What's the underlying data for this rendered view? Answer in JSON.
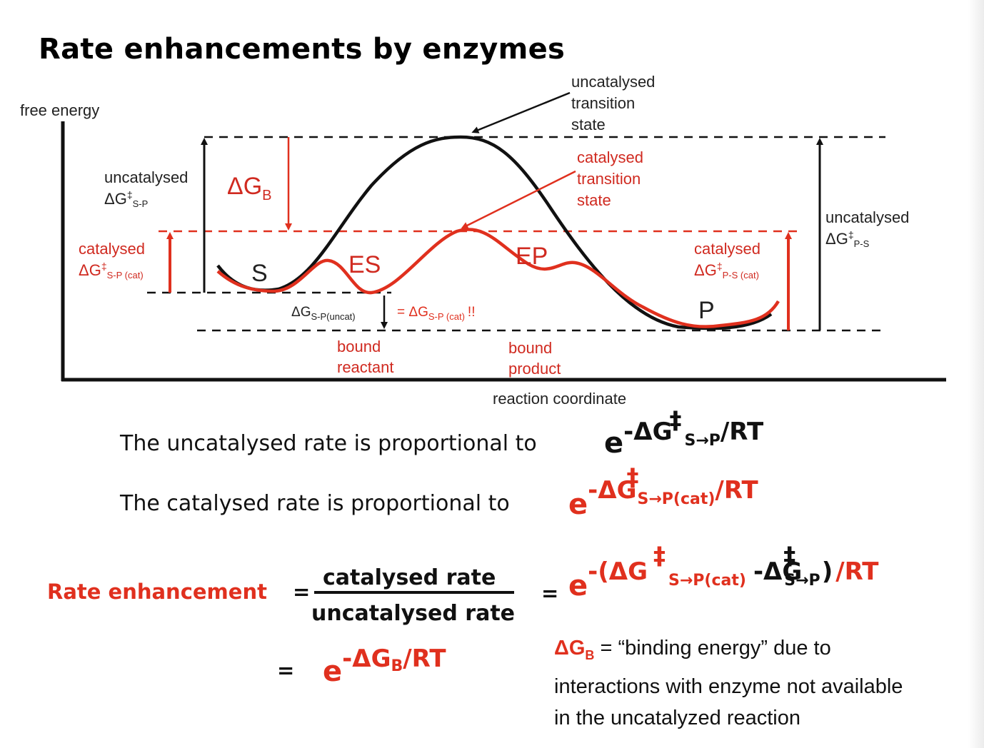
{
  "title": "Rate enhancements by enzymes",
  "diagram": {
    "y_axis_label": "free energy",
    "x_axis_label": "reaction coordinate",
    "uncat_ts_label": [
      "uncatalysed",
      "transition",
      "state"
    ],
    "cat_ts_label": [
      "catalysed",
      "transition",
      "state"
    ],
    "uncat_left": {
      "line1": "uncatalysed",
      "delta": "ΔG",
      "dagger": "‡",
      "sub": "S-P"
    },
    "cat_left": {
      "line1": "catalysed",
      "delta": "ΔG",
      "dagger": "‡",
      "sub": "S-P (cat)"
    },
    "uncat_right": {
      "line1": "uncatalysed",
      "delta": "ΔG",
      "dagger": "‡",
      "sub": "P-S"
    },
    "cat_right": {
      "line1": "catalysed",
      "delta": "ΔG",
      "dagger": "‡",
      "sub": "P-S (cat)"
    },
    "dgb": {
      "delta": "ΔG",
      "sub": "B"
    },
    "states": {
      "S": "S",
      "ES": "ES",
      "EP": "EP",
      "P": "P"
    },
    "dgsp": {
      "delta": "ΔG",
      "sub": "S-P(uncat)",
      "eq": "= ΔG",
      "eq_sub": "S-P (cat)",
      "bang": "!!"
    },
    "bound_reactant": [
      "bound",
      "reactant"
    ],
    "bound_product": [
      "bound",
      "product"
    ]
  },
  "statements": {
    "uncat_text": "The uncatalysed rate is proportional to",
    "cat_text": "The catalysed rate is proportional to",
    "uncat_formula": {
      "e": "e",
      "exp": "-ΔG",
      "dagger": "‡",
      "sub": "S→P",
      "tail": "/RT"
    },
    "cat_formula": {
      "e": "e",
      "exp": "-ΔG",
      "dagger": "‡",
      "sub": "S→P(cat)",
      "tail": "/RT"
    }
  },
  "rate_enhancement": {
    "label": "Rate enhancement",
    "eq1": "=",
    "numerator": "catalysed rate",
    "denominator": "uncatalysed rate",
    "eq2": "=",
    "big_formula": {
      "e": "e",
      "part1": "-(ΔG",
      "dagger1": "‡",
      "sub1": "S→P(cat)",
      "part2": "-ΔG",
      "dagger2": "‡",
      "sub2": "S→P",
      "close": ")",
      "tail": "/RT"
    },
    "eq3": "=",
    "dgb_formula": {
      "e": "e",
      "exp": "-ΔG",
      "sub": "B",
      "tail": "/RT"
    }
  },
  "note": {
    "delta": "ΔG",
    "sub": "B",
    "text1": " = “binding energy” due to",
    "text2": "interactions with enzyme not available",
    "text3": "in the uncatalyzed reaction"
  },
  "colors": {
    "red": "#e0301e",
    "dark_red": "#d02a20",
    "black": "#111111"
  }
}
